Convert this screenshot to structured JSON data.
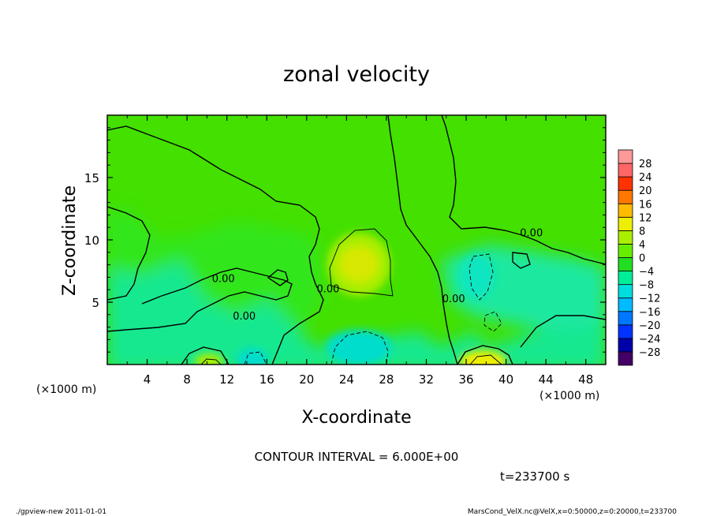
{
  "chart_data": {
    "type": "heatmap",
    "title": "zonal velocity",
    "xlabel": "X-coordinate",
    "ylabel": "Z-coordinate",
    "x_unit_note": "(×1000 m)",
    "y_unit_note": "(×1000 m)",
    "xlim": [
      0,
      50
    ],
    "ylim": [
      0,
      20
    ],
    "x_ticks": [
      4,
      8,
      12,
      16,
      20,
      24,
      28,
      32,
      36,
      40,
      44,
      48
    ],
    "y_ticks": [
      5,
      10,
      15
    ],
    "contour_interval_text": "CONTOUR INTERVAL = 6.000E+00",
    "time_text": "t=233700 s",
    "contour_labels": [
      {
        "text": "0.00",
        "x": 10.5,
        "y": 6.6
      },
      {
        "text": "0.00",
        "x": 12.6,
        "y": 3.6
      },
      {
        "text": "0.00",
        "x": 21.0,
        "y": 5.8
      },
      {
        "text": "0.00",
        "x": 33.6,
        "y": 5.0
      },
      {
        "text": "0.00",
        "x": 41.4,
        "y": 10.3
      }
    ],
    "colorbar": {
      "levels": [
        -28,
        -24,
        -20,
        -16,
        -12,
        -8,
        -4,
        0,
        4,
        8,
        12,
        16,
        20,
        24,
        28
      ],
      "colors": [
        "#440066",
        "#0000aa",
        "#0033ff",
        "#0077ff",
        "#00bbff",
        "#00dddd",
        "#00ee99",
        "#22dd22",
        "#66ee00",
        "#aaee00",
        "#eeee00",
        "#ffbb00",
        "#ff7700",
        "#ff3300",
        "#ff6666",
        "#ff9999"
      ]
    },
    "field_features": [
      {
        "kind": "max",
        "x": 25,
        "y": 8,
        "value": 8
      },
      {
        "kind": "max",
        "x": 38,
        "y": 0.5,
        "value": 12
      },
      {
        "kind": "min",
        "x": 25.5,
        "y": 1.5,
        "value": -12
      },
      {
        "kind": "min",
        "x": 14.5,
        "y": 0.5,
        "value": -12
      }
    ]
  },
  "footer": {
    "left": "./gpview-new  2011-01-01",
    "right": "MarsCond_VelX.nc@VelX,x=0:50000,z=0:20000,t=233700"
  }
}
